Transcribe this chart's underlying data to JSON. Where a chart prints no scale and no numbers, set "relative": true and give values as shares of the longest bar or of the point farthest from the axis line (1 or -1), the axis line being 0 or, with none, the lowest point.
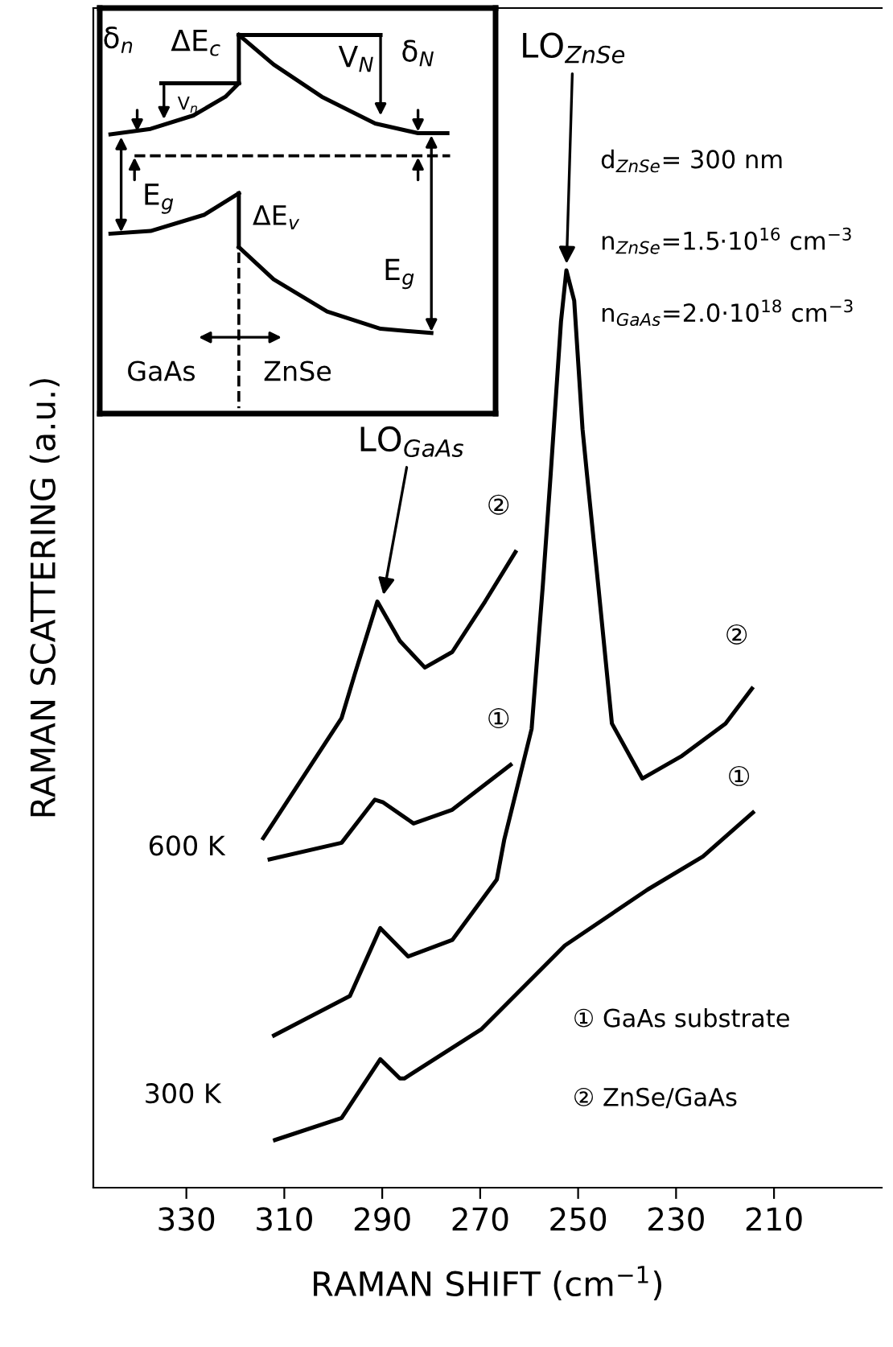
{
  "chart_data": {
    "type": "line",
    "xlabel": "RAMAN SHIFT (cm$^{−1}$)",
    "ylabel": "RAMAN SCATTERING (a.u.)",
    "relative": true,
    "line_style": "solid",
    "xlim": [
      349,
      188
    ],
    "xticks": [
      330,
      310,
      290,
      270,
      250,
      230,
      210
    ],
    "series": [
      {
        "color": "#000000",
        "x": [
          314.3,
          298.3,
          295.6,
          291.0,
          286.4,
          281.3,
          275.7,
          269.0,
          262.8
        ],
        "values": [
          0.381,
          0.512,
          0.56,
          0.639,
          0.596,
          0.567,
          0.584,
          0.639,
          0.693
        ]
      },
      {
        "color": "#000000",
        "x": [
          313.0,
          298.3,
          291.5,
          289.8,
          283.6,
          275.7,
          263.8
        ],
        "values": [
          0.358,
          0.376,
          0.423,
          0.42,
          0.397,
          0.412,
          0.461
        ]
      },
      {
        "color": "#000000",
        "x": [
          312.1,
          296.6,
          290.4,
          284.7,
          275.7,
          266.6,
          265.1,
          259.5,
          257.2,
          255.6,
          253.5,
          252.4,
          250.8,
          249.1,
          248.2,
          245.9,
          243.1,
          236.9,
          229.0,
          219.9,
          214.5
        ],
        "values": [
          0.166,
          0.209,
          0.283,
          0.252,
          0.27,
          0.336,
          0.379,
          0.5,
          0.657,
          0.778,
          0.944,
          1.0,
          0.967,
          0.827,
          0.778,
          0.657,
          0.506,
          0.446,
          0.47,
          0.506,
          0.544
        ]
      },
      {
        "color": "#000000",
        "x": [
          311.9,
          298.3,
          290.4,
          286.4,
          285.5,
          269.7,
          252.7,
          235.8,
          224.5,
          214.3
        ],
        "values": [
          0.052,
          0.076,
          0.14,
          0.119,
          0.119,
          0.173,
          0.264,
          0.325,
          0.361,
          0.409
        ]
      }
    ],
    "annotations": [
      {
        "text": "LO$_{GaAs}$",
        "x": 290,
        "y": 0.639
      },
      {
        "text": "LO$_{ZnSe}$",
        "x": 252.4,
        "y": 1.0
      },
      "600 K",
      "300 K",
      "②",
      "①",
      "②",
      "①",
      "d$_{ZnSe}$= 300 nm",
      "n$_{ZnSe}$=1.5·10$^{16}$ cm$^{−3}$",
      "n$_{GaAs}$=2.0·10$^{18}$ cm$^{−3}$",
      "① GaAs substrate",
      "② ZnSe/GaAs",
      "δ$_{n}$",
      "ΔE$_{c}$",
      "V$_{n}$",
      "V$_{N}$",
      "δ$_{N}$",
      "E$_{g}$",
      "ΔE$_{v}$",
      "E$_{g}$",
      "GaAs",
      "ZnSe"
    ]
  }
}
